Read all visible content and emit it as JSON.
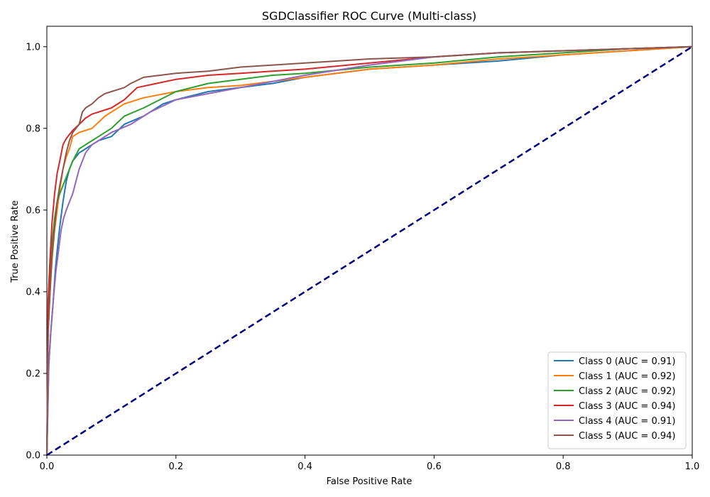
{
  "chart_data": {
    "type": "line",
    "title": "SGDClassifier ROC Curve (Multi-class)",
    "xlabel": "False Positive Rate",
    "ylabel": "True Positive Rate",
    "xlim": [
      0.0,
      1.0
    ],
    "ylim": [
      0.0,
      1.05
    ],
    "xticks": [
      "0.0",
      "0.2",
      "0.4",
      "0.6",
      "0.8",
      "1.0"
    ],
    "yticks": [
      "0.0",
      "0.2",
      "0.4",
      "0.6",
      "0.8",
      "1.0"
    ],
    "grid": false,
    "legend_position": "lower-right",
    "reference_line": {
      "x": [
        0,
        1
      ],
      "y": [
        0,
        1
      ],
      "color": "#000080",
      "style": "dashed"
    },
    "series": [
      {
        "name": "Class 0 (AUC = 0.91)",
        "color": "#1f77b4",
        "x": [
          0,
          0.003,
          0.006,
          0.01,
          0.013,
          0.016,
          0.02,
          0.025,
          0.03,
          0.035,
          0.04,
          0.05,
          0.06,
          0.07,
          0.08,
          0.1,
          0.12,
          0.15,
          0.18,
          0.2,
          0.25,
          0.3,
          0.35,
          0.4,
          0.5,
          0.6,
          0.7,
          0.8,
          0.9,
          1.0
        ],
        "y": [
          0,
          0.22,
          0.3,
          0.38,
          0.45,
          0.5,
          0.56,
          0.62,
          0.67,
          0.7,
          0.72,
          0.74,
          0.75,
          0.76,
          0.77,
          0.78,
          0.81,
          0.83,
          0.86,
          0.87,
          0.89,
          0.9,
          0.91,
          0.925,
          0.945,
          0.955,
          0.965,
          0.98,
          0.99,
          1.0
        ]
      },
      {
        "name": "Class 1 (AUC = 0.92)",
        "color": "#ff7f0e",
        "x": [
          0,
          0.002,
          0.005,
          0.008,
          0.012,
          0.016,
          0.02,
          0.025,
          0.03,
          0.035,
          0.04,
          0.05,
          0.07,
          0.09,
          0.1,
          0.12,
          0.15,
          0.2,
          0.25,
          0.3,
          0.4,
          0.5,
          0.6,
          0.7,
          0.8,
          0.9,
          1.0
        ],
        "y": [
          0,
          0.3,
          0.4,
          0.48,
          0.55,
          0.6,
          0.65,
          0.7,
          0.73,
          0.75,
          0.78,
          0.79,
          0.8,
          0.83,
          0.84,
          0.86,
          0.875,
          0.89,
          0.9,
          0.905,
          0.925,
          0.945,
          0.955,
          0.97,
          0.98,
          0.99,
          1.0
        ]
      },
      {
        "name": "Class 2 (AUC = 0.92)",
        "color": "#2ca02c",
        "x": [
          0,
          0.002,
          0.005,
          0.008,
          0.012,
          0.016,
          0.02,
          0.025,
          0.03,
          0.035,
          0.04,
          0.05,
          0.06,
          0.07,
          0.08,
          0.1,
          0.12,
          0.15,
          0.2,
          0.25,
          0.3,
          0.35,
          0.4,
          0.5,
          0.6,
          0.7,
          0.8,
          0.9,
          1.0
        ],
        "y": [
          0,
          0.32,
          0.43,
          0.52,
          0.58,
          0.62,
          0.64,
          0.66,
          0.68,
          0.7,
          0.72,
          0.75,
          0.76,
          0.77,
          0.78,
          0.8,
          0.83,
          0.85,
          0.89,
          0.91,
          0.92,
          0.93,
          0.935,
          0.95,
          0.96,
          0.975,
          0.985,
          0.995,
          1.0
        ]
      },
      {
        "name": "Class 3 (AUC = 0.94)",
        "color": "#d62728",
        "x": [
          0,
          0.002,
          0.005,
          0.008,
          0.012,
          0.016,
          0.02,
          0.025,
          0.03,
          0.035,
          0.04,
          0.05,
          0.06,
          0.07,
          0.08,
          0.1,
          0.12,
          0.14,
          0.17,
          0.2,
          0.25,
          0.3,
          0.35,
          0.4,
          0.5,
          0.6,
          0.7,
          0.8,
          0.9,
          1.0
        ],
        "y": [
          0,
          0.38,
          0.48,
          0.57,
          0.64,
          0.69,
          0.72,
          0.76,
          0.775,
          0.785,
          0.795,
          0.81,
          0.825,
          0.835,
          0.84,
          0.85,
          0.87,
          0.9,
          0.91,
          0.92,
          0.93,
          0.935,
          0.94,
          0.945,
          0.96,
          0.975,
          0.985,
          0.99,
          0.995,
          1.0
        ]
      },
      {
        "name": "Class 4 (AUC = 0.91)",
        "color": "#9467bd",
        "x": [
          0,
          0.003,
          0.006,
          0.01,
          0.014,
          0.018,
          0.022,
          0.026,
          0.03,
          0.035,
          0.04,
          0.045,
          0.05,
          0.055,
          0.06,
          0.07,
          0.08,
          0.1,
          0.13,
          0.16,
          0.2,
          0.25,
          0.3,
          0.35,
          0.4,
          0.5,
          0.6,
          0.7,
          0.8,
          0.9,
          1.0
        ],
        "y": [
          0,
          0.22,
          0.3,
          0.38,
          0.45,
          0.5,
          0.55,
          0.58,
          0.6,
          0.62,
          0.64,
          0.67,
          0.7,
          0.72,
          0.74,
          0.76,
          0.77,
          0.79,
          0.81,
          0.84,
          0.87,
          0.885,
          0.9,
          0.915,
          0.93,
          0.955,
          0.975,
          0.985,
          0.99,
          0.995,
          1.0
        ]
      },
      {
        "name": "Class 5 (AUC = 0.94)",
        "color": "#8c564b",
        "x": [
          0,
          0.002,
          0.005,
          0.008,
          0.012,
          0.016,
          0.02,
          0.025,
          0.03,
          0.035,
          0.04,
          0.045,
          0.05,
          0.055,
          0.06,
          0.07,
          0.08,
          0.09,
          0.1,
          0.12,
          0.13,
          0.15,
          0.2,
          0.25,
          0.3,
          0.4,
          0.5,
          0.6,
          0.7,
          0.8,
          0.9,
          1.0
        ],
        "y": [
          0,
          0.3,
          0.4,
          0.49,
          0.56,
          0.62,
          0.66,
          0.7,
          0.74,
          0.77,
          0.79,
          0.8,
          0.81,
          0.84,
          0.85,
          0.86,
          0.875,
          0.885,
          0.89,
          0.9,
          0.91,
          0.925,
          0.935,
          0.94,
          0.95,
          0.96,
          0.97,
          0.975,
          0.985,
          0.99,
          0.995,
          1.0
        ]
      }
    ]
  }
}
